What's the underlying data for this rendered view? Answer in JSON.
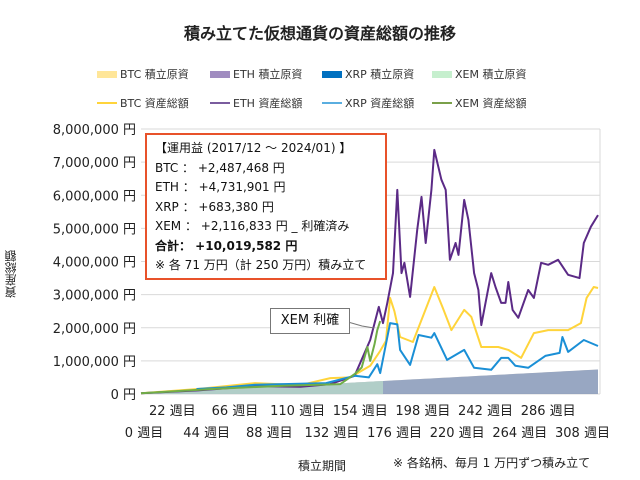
{
  "chart_data": {
    "type": "line",
    "title": "積み立てた仮想通貨の資産総額の推移",
    "xlabel": "積立期間",
    "ylabel": "資産総額",
    "note": "※ 各銘柄、毎月 1 万円ずつ積み立て",
    "ylim": [
      0,
      8000000
    ],
    "xlim": [
      0,
      321
    ],
    "grid": true,
    "legend_placement": "top",
    "yticks": [
      "0 円",
      "1,000,000 円",
      "2,000,000 円",
      "3,000,000 円",
      "4,000,000 円",
      "5,000,000 円",
      "6,000,000 円",
      "7,000,000 円",
      "8,000,000 円"
    ],
    "xticks_row1": [
      "22 週目",
      "66 週目",
      "110 週目",
      "154 週目",
      "198 週目",
      "242 週目",
      "286 週目"
    ],
    "xticks_row2": [
      "0 週目",
      "44 週目",
      "88 週目",
      "132 週目",
      "176 週目",
      "220 週目",
      "264 週目",
      "308 週目"
    ],
    "principal_per_month": 10000,
    "principal_series": [
      {
        "name": "BTC 積立原資",
        "color": "#ffe699",
        "start_week": 0,
        "end_week": 321
      },
      {
        "name": "ETH 積立原資",
        "color": "#a08cc0",
        "start_week": 0,
        "end_week": 321
      },
      {
        "name": "XRP 積立原資",
        "color": "#0070c0",
        "start_week": 0,
        "end_week": 321
      },
      {
        "name": "XEM 積立原資",
        "color": "#c6efce",
        "start_week": 0,
        "end_week": 170
      }
    ],
    "series": [
      {
        "name": "BTC 資産総額",
        "color": "#ffd43b",
        "points": [
          [
            0,
            20000
          ],
          [
            40,
            150000
          ],
          [
            80,
            330000
          ],
          [
            112,
            270000
          ],
          [
            133,
            480000
          ],
          [
            147,
            500000
          ],
          [
            161,
            850000
          ],
          [
            168,
            1300000
          ],
          [
            172,
            1600000
          ],
          [
            175,
            2900000
          ],
          [
            178,
            2500000
          ],
          [
            182,
            1720000
          ],
          [
            191,
            1570000
          ],
          [
            199,
            2450000
          ],
          [
            206,
            3230000
          ],
          [
            212,
            2600000
          ],
          [
            218,
            1930000
          ],
          [
            227,
            2540000
          ],
          [
            232,
            2330000
          ],
          [
            239,
            1420000
          ],
          [
            251,
            1420000
          ],
          [
            258,
            1330000
          ],
          [
            267,
            1090000
          ],
          [
            276,
            1840000
          ],
          [
            286,
            1930000
          ],
          [
            300,
            1930000
          ],
          [
            309,
            2140000
          ],
          [
            313,
            2900000
          ],
          [
            318,
            3230000
          ],
          [
            321,
            3200000
          ]
        ]
      },
      {
        "name": "ETH 資産総額",
        "color": "#5b2a86",
        "points": [
          [
            0,
            20000
          ],
          [
            40,
            110000
          ],
          [
            80,
            240000
          ],
          [
            112,
            220000
          ],
          [
            133,
            300000
          ],
          [
            150,
            550000
          ],
          [
            161,
            1630000
          ],
          [
            167,
            2630000
          ],
          [
            170,
            2140000
          ],
          [
            173,
            2750000
          ],
          [
            177,
            3650000
          ],
          [
            180,
            6160000
          ],
          [
            183,
            3650000
          ],
          [
            185,
            3960000
          ],
          [
            189,
            2930000
          ],
          [
            194,
            4950000
          ],
          [
            197,
            5950000
          ],
          [
            200,
            4560000
          ],
          [
            204,
            6160000
          ],
          [
            206,
            7370000
          ],
          [
            211,
            6470000
          ],
          [
            214,
            6160000
          ],
          [
            217,
            4050000
          ],
          [
            221,
            4560000
          ],
          [
            223,
            4200000
          ],
          [
            227,
            5860000
          ],
          [
            230,
            5260000
          ],
          [
            234,
            3650000
          ],
          [
            237,
            3140000
          ],
          [
            239,
            2080000
          ],
          [
            246,
            3650000
          ],
          [
            249,
            3230000
          ],
          [
            253,
            2750000
          ],
          [
            256,
            2750000
          ],
          [
            258,
            3380000
          ],
          [
            261,
            2540000
          ],
          [
            265,
            2300000
          ],
          [
            272,
            3140000
          ],
          [
            276,
            2900000
          ],
          [
            281,
            3960000
          ],
          [
            286,
            3900000
          ],
          [
            293,
            4050000
          ],
          [
            300,
            3600000
          ],
          [
            308,
            3500000
          ],
          [
            311,
            4560000
          ],
          [
            316,
            5050000
          ],
          [
            321,
            5400000
          ]
        ]
      },
      {
        "name": "XRP 資産総額",
        "color": "#1a8fd6",
        "points": [
          [
            39,
            150000
          ],
          [
            60,
            200000
          ],
          [
            80,
            280000
          ],
          [
            100,
            300000
          ],
          [
            130,
            330000
          ],
          [
            150,
            550000
          ],
          [
            160,
            500000
          ],
          [
            166,
            900000
          ],
          [
            168,
            630000
          ],
          [
            175,
            2140000
          ],
          [
            180,
            2100000
          ],
          [
            182,
            1330000
          ],
          [
            189,
            880000
          ],
          [
            195,
            1780000
          ],
          [
            204,
            1700000
          ],
          [
            206,
            1840000
          ],
          [
            215,
            1030000
          ],
          [
            227,
            1330000
          ],
          [
            234,
            790000
          ],
          [
            246,
            730000
          ],
          [
            253,
            1090000
          ],
          [
            258,
            1090000
          ],
          [
            263,
            850000
          ],
          [
            272,
            790000
          ],
          [
            284,
            1150000
          ],
          [
            294,
            1240000
          ],
          [
            296,
            1720000
          ],
          [
            300,
            1270000
          ],
          [
            311,
            1630000
          ],
          [
            321,
            1450000
          ]
        ]
      },
      {
        "name": "XEM 資産総額",
        "color": "#70ad47",
        "points": [
          [
            0,
            20000
          ],
          [
            50,
            150000
          ],
          [
            100,
            250000
          ],
          [
            140,
            300000
          ],
          [
            150,
            600000
          ],
          [
            155,
            800000
          ],
          [
            159,
            1420000
          ],
          [
            161,
            1000000
          ],
          [
            164,
            1500000
          ],
          [
            166,
            1930000
          ],
          [
            168,
            2200000
          ]
        ]
      }
    ]
  },
  "info_box": {
    "heading": "【運用益 (2017/12 ～ 2024/01) 】",
    "lines": [
      "BTC ： +2,487,468 円",
      "ETH ： +4,731,901 円",
      "XRP ： +683,380 円",
      "XEM ： +2,116,833 円 _ 利確済み"
    ],
    "total": "合計： +10,019,582 円",
    "footnote": "※ 各 71 万円（計 250 万円）積み立て"
  },
  "callout": "XEM 利確"
}
